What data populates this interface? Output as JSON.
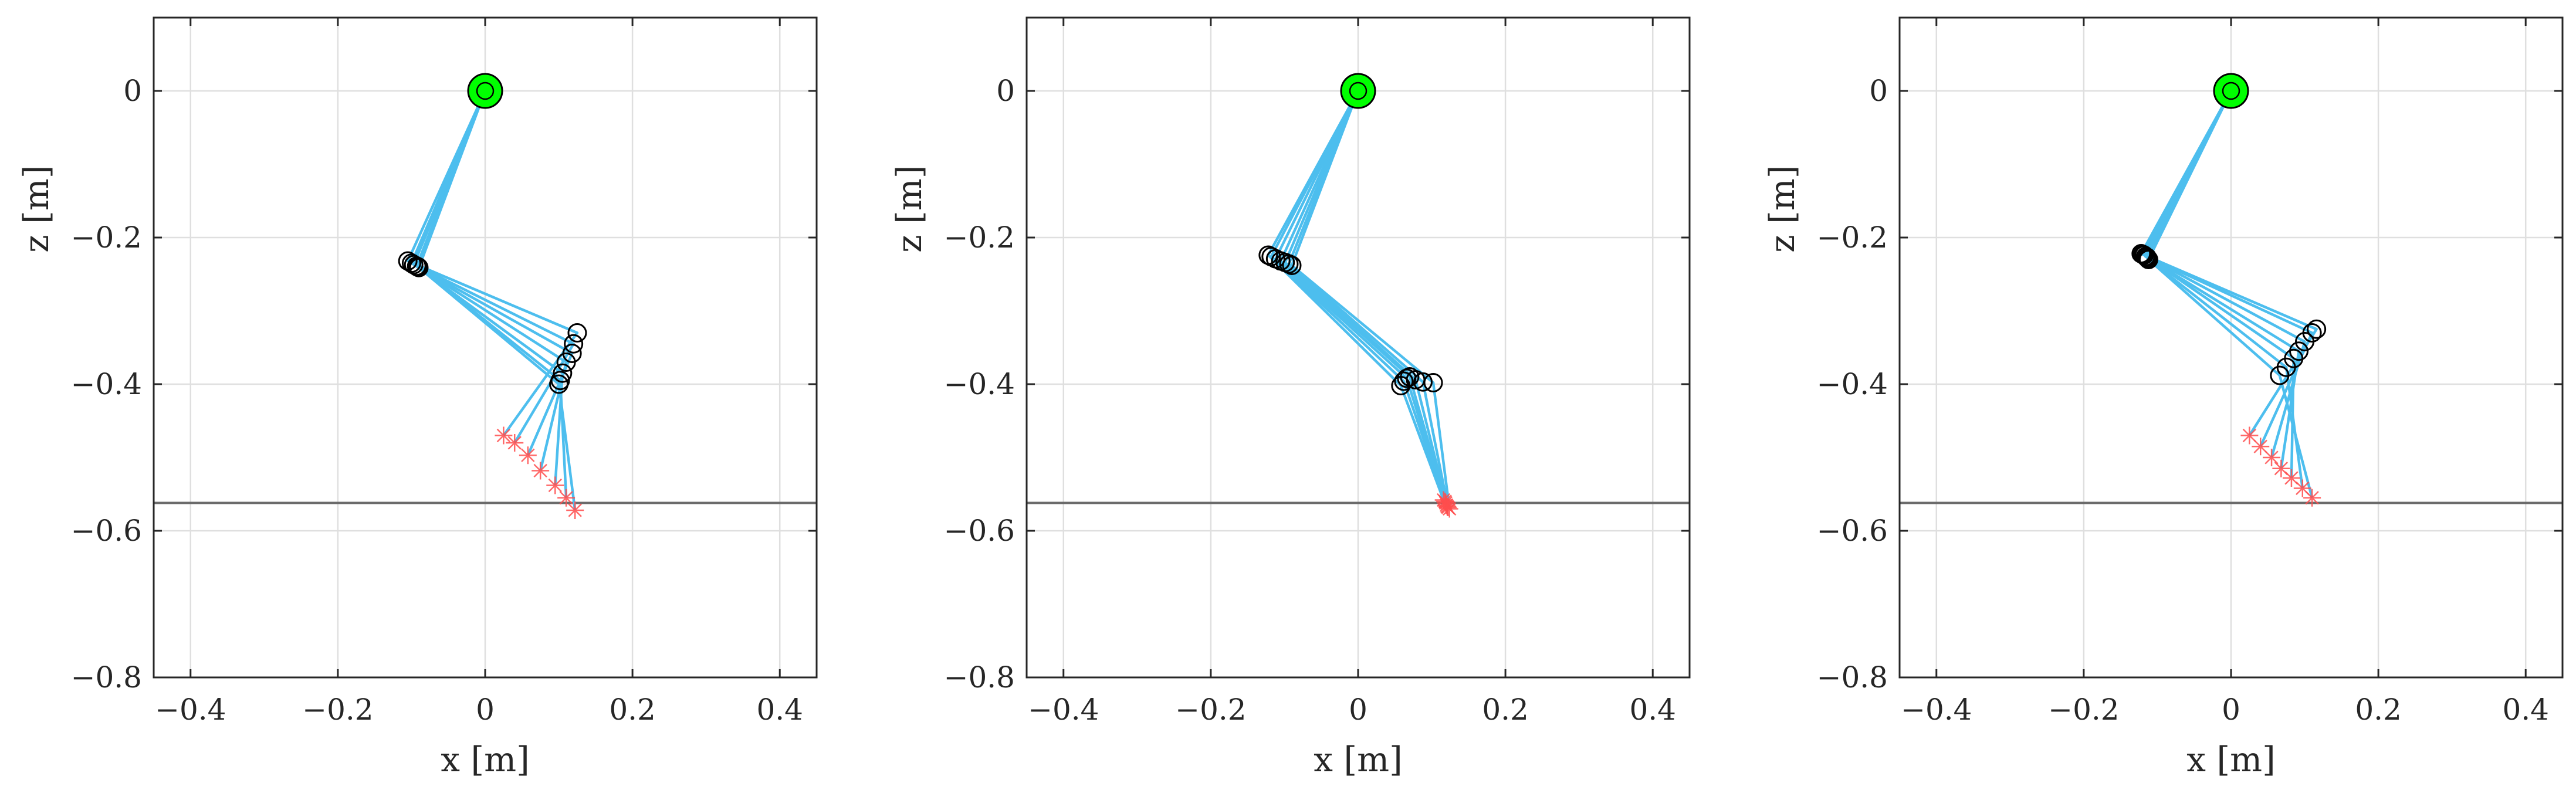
{
  "chart_data": [
    {
      "type": "line",
      "xlabel": "x [m]",
      "ylabel": "z [m]",
      "xlim": [
        -0.45,
        0.45
      ],
      "ylim": [
        -0.8,
        0.1
      ],
      "xticks": [
        -0.4,
        -0.2,
        0,
        0.2,
        0.4
      ],
      "yticks": [
        0,
        -0.2,
        -0.4,
        -0.6,
        -0.8
      ],
      "xtick_labels": [
        "−0.4",
        "−0.2",
        "0",
        "0.2",
        "0.4"
      ],
      "ytick_labels": [
        "0",
        "−0.2",
        "−0.4",
        "−0.6",
        "−0.8"
      ],
      "grid": true,
      "ground_z": -0.562,
      "hip": [
        0,
        0
      ],
      "frames": [
        {
          "knee": [
            -0.105,
            -0.232
          ],
          "ankle": [
            0.125,
            -0.33
          ],
          "foot": [
            0.025,
            -0.47
          ]
        },
        {
          "knee": [
            -0.1,
            -0.235
          ],
          "ankle": [
            0.12,
            -0.345
          ],
          "foot": [
            0.04,
            -0.48
          ]
        },
        {
          "knee": [
            -0.097,
            -0.237
          ],
          "ankle": [
            0.118,
            -0.358
          ],
          "foot": [
            0.058,
            -0.497
          ]
        },
        {
          "knee": [
            -0.093,
            -0.239
          ],
          "ankle": [
            0.11,
            -0.37
          ],
          "foot": [
            0.075,
            -0.518
          ]
        },
        {
          "knee": [
            -0.092,
            -0.24
          ],
          "ankle": [
            0.105,
            -0.385
          ],
          "foot": [
            0.095,
            -0.538
          ]
        },
        {
          "knee": [
            -0.091,
            -0.24
          ],
          "ankle": [
            0.102,
            -0.395
          ],
          "foot": [
            0.11,
            -0.555
          ]
        },
        {
          "knee": [
            -0.09,
            -0.241
          ],
          "ankle": [
            0.1,
            -0.4
          ],
          "foot": [
            0.122,
            -0.572
          ]
        }
      ]
    },
    {
      "type": "line",
      "xlabel": "x [m]",
      "ylabel": "z [m]",
      "xlim": [
        -0.45,
        0.45
      ],
      "ylim": [
        -0.8,
        0.1
      ],
      "xticks": [
        -0.4,
        -0.2,
        0,
        0.2,
        0.4
      ],
      "yticks": [
        0,
        -0.2,
        -0.4,
        -0.6,
        -0.8
      ],
      "xtick_labels": [
        "−0.4",
        "−0.2",
        "0",
        "0.2",
        "0.4"
      ],
      "ytick_labels": [
        "0",
        "−0.2",
        "−0.4",
        "−0.6",
        "−0.8"
      ],
      "grid": true,
      "ground_z": -0.562,
      "hip": [
        0,
        0
      ],
      "frames": [
        {
          "knee": [
            -0.122,
            -0.224
          ],
          "ankle": [
            0.058,
            -0.402
          ],
          "foot": [
            0.116,
            -0.558
          ]
        },
        {
          "knee": [
            -0.118,
            -0.226
          ],
          "ankle": [
            0.062,
            -0.396
          ],
          "foot": [
            0.118,
            -0.56
          ]
        },
        {
          "knee": [
            -0.112,
            -0.229
          ],
          "ankle": [
            0.066,
            -0.392
          ],
          "foot": [
            0.119,
            -0.562
          ]
        },
        {
          "knee": [
            -0.105,
            -0.232
          ],
          "ankle": [
            0.07,
            -0.39
          ],
          "foot": [
            0.12,
            -0.565
          ]
        },
        {
          "knee": [
            -0.099,
            -0.234
          ],
          "ankle": [
            0.078,
            -0.394
          ],
          "foot": [
            0.121,
            -0.567
          ]
        },
        {
          "knee": [
            -0.094,
            -0.236
          ],
          "ankle": [
            0.088,
            -0.397
          ],
          "foot": [
            0.122,
            -0.568
          ]
        },
        {
          "knee": [
            -0.09,
            -0.238
          ],
          "ankle": [
            0.102,
            -0.398
          ],
          "foot": [
            0.124,
            -0.57
          ]
        }
      ]
    },
    {
      "type": "line",
      "xlabel": "x [m]",
      "ylabel": "z [m]",
      "xlim": [
        -0.45,
        0.45
      ],
      "ylim": [
        -0.8,
        0.1
      ],
      "xticks": [
        -0.4,
        -0.2,
        0,
        0.2,
        0.4
      ],
      "yticks": [
        0,
        -0.2,
        -0.4,
        -0.6,
        -0.8
      ],
      "xtick_labels": [
        "−0.4",
        "−0.2",
        "0",
        "0.2",
        "0.4"
      ],
      "ytick_labels": [
        "0",
        "−0.2",
        "−0.4",
        "−0.6",
        "−0.8"
      ],
      "grid": true,
      "ground_z": -0.562,
      "hip": [
        0,
        0
      ],
      "frames": [
        {
          "knee": [
            -0.122,
            -0.222
          ],
          "ankle": [
            0.116,
            -0.325
          ],
          "foot": [
            0.025,
            -0.47
          ]
        },
        {
          "knee": [
            -0.12,
            -0.223
          ],
          "ankle": [
            0.11,
            -0.33
          ],
          "foot": [
            0.04,
            -0.485
          ]
        },
        {
          "knee": [
            -0.118,
            -0.224
          ],
          "ankle": [
            0.1,
            -0.342
          ],
          "foot": [
            0.055,
            -0.5
          ]
        },
        {
          "knee": [
            -0.116,
            -0.226
          ],
          "ankle": [
            0.092,
            -0.355
          ],
          "foot": [
            0.068,
            -0.515
          ]
        },
        {
          "knee": [
            -0.114,
            -0.227
          ],
          "ankle": [
            0.085,
            -0.365
          ],
          "foot": [
            0.082,
            -0.528
          ]
        },
        {
          "knee": [
            -0.113,
            -0.229
          ],
          "ankle": [
            0.075,
            -0.377
          ],
          "foot": [
            0.097,
            -0.542
          ]
        },
        {
          "knee": [
            -0.112,
            -0.23
          ],
          "ankle": [
            0.066,
            -0.388
          ],
          "foot": [
            0.11,
            -0.555
          ]
        }
      ]
    }
  ],
  "colors": {
    "link": "#4DBEEE",
    "joint_edge": "#000000",
    "hip_fill": "#00FF00",
    "foot_marker": "#FF4D4D",
    "grid": "#DFDFDF",
    "ground": "#6B6B6B",
    "axes": "#262626"
  }
}
